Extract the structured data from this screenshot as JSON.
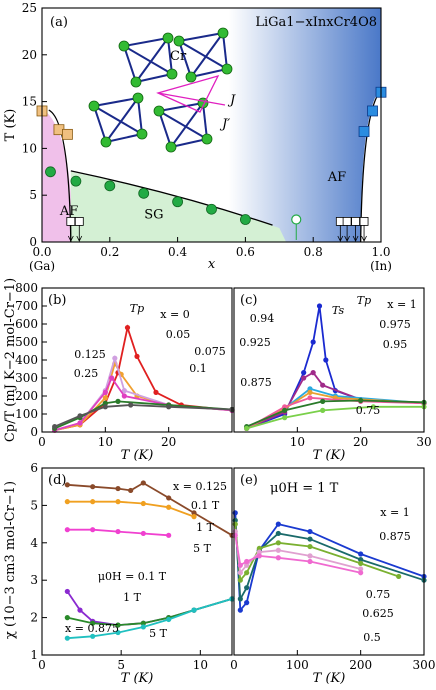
{
  "chart_data": [
    {
      "panel": "(a)",
      "type": "scatter",
      "title": "LiGa1−xInxCr4O8",
      "xlabel": "x",
      "ylabel": "T (K)",
      "xlim": [
        0,
        1
      ],
      "ylim": [
        0,
        25
      ],
      "x_ticks": [
        "0.0",
        "0.2",
        "0.4",
        "0.6",
        "0.8",
        "1.0"
      ],
      "y_ticks": [
        "0",
        "5",
        "10",
        "15",
        "20",
        "25"
      ],
      "x_end_labels": [
        "(Ga)",
        "(In)"
      ],
      "regions": [
        "AF",
        "SG",
        "AF"
      ],
      "structure_labels": [
        "Cr",
        "J",
        "J′"
      ],
      "colors": {
        "af_left": "#f0c0ea",
        "sg": "#d4f0d4",
        "af_right_top": "#4a78c8",
        "sg_points": "#22aa44",
        "ga_points": "#f0c080",
        "in_points": "#2a8ce0"
      },
      "series": [
        {
          "name": "SG",
          "x": [
            0.025,
            0.1,
            0.2,
            0.3,
            0.4,
            0.5,
            0.6
          ],
          "y": [
            7.5,
            6.5,
            6.0,
            5.2,
            4.3,
            3.5,
            2.4
          ]
        },
        {
          "name": "AF (Ga)",
          "x": [
            0.0,
            0.05,
            0.075
          ],
          "y": [
            14.0,
            12.0,
            11.5
          ]
        },
        {
          "name": "AF (In)",
          "x": [
            0.95,
            0.975,
            1.0
          ],
          "y": [
            11.8,
            14.0,
            16.0
          ]
        }
      ]
    },
    {
      "panel": "(b)",
      "type": "line",
      "xlabel": "T (K)",
      "ylabel": "Cp/T (mJ K−2 mol-Cr−1)",
      "xlim": [
        0,
        30
      ],
      "ylim": [
        0,
        800
      ],
      "x_ticks": [
        "0",
        "10",
        "20"
      ],
      "y_ticks": [
        "0",
        "100",
        "200",
        "300",
        "400",
        "500",
        "600",
        "700",
        "800"
      ],
      "peak_label": "Tp",
      "series": [
        {
          "name": "x = 0",
          "color": "#e02020",
          "x": [
            2,
            6,
            10,
            12,
            13.5,
            15,
            18,
            22,
            30
          ],
          "y": [
            10,
            40,
            160,
            330,
            580,
            420,
            220,
            150,
            120
          ]
        },
        {
          "name": "0.05",
          "color": "#f0a030",
          "x": [
            2,
            6,
            10,
            11.5,
            12.5,
            15,
            20,
            30
          ],
          "y": [
            10,
            40,
            190,
            380,
            320,
            200,
            150,
            120
          ]
        },
        {
          "name": "0.075",
          "color": "#d0a0e0",
          "x": [
            2,
            6,
            10,
            11.5,
            13,
            20,
            30
          ],
          "y": [
            10,
            50,
            230,
            410,
            230,
            150,
            120
          ]
        },
        {
          "name": "0.1",
          "color": "#e040c0",
          "x": [
            2,
            6,
            10,
            11,
            13,
            20,
            30
          ],
          "y": [
            10,
            50,
            220,
            300,
            200,
            150,
            120
          ]
        },
        {
          "name": "0.125",
          "color": "#2a7a2a",
          "x": [
            2,
            6,
            10,
            12,
            20,
            30
          ],
          "y": [
            20,
            80,
            160,
            170,
            150,
            125
          ]
        },
        {
          "name": "0.25",
          "color": "#555555",
          "x": [
            2,
            6,
            10,
            14,
            20,
            30
          ],
          "y": [
            30,
            90,
            140,
            150,
            140,
            125
          ]
        }
      ]
    },
    {
      "panel": "(c)",
      "type": "line",
      "xlabel": "T (K)",
      "xlim": [
        0,
        30
      ],
      "ylim": [
        0,
        800
      ],
      "x_ticks": [
        "10",
        "20",
        "30"
      ],
      "peak_labels": [
        "Ts",
        "Tp"
      ],
      "series": [
        {
          "name": "x = 1",
          "color": "#1a2ad0",
          "x": [
            2,
            8,
            11,
            12.5,
            13.5,
            14.5,
            16,
            20,
            30
          ],
          "y": [
            20,
            100,
            330,
            500,
            700,
            400,
            230,
            180,
            160
          ]
        },
        {
          "name": "0.975",
          "color": "#a02a8a",
          "x": [
            2,
            8,
            11,
            12.5,
            14,
            20,
            30
          ],
          "y": [
            20,
            110,
            300,
            330,
            260,
            180,
            160
          ]
        },
        {
          "name": "0.95",
          "color": "#2aaae0",
          "x": [
            2,
            8,
            12,
            16,
            30
          ],
          "y": [
            20,
            130,
            240,
            200,
            160
          ]
        },
        {
          "name": "0.94",
          "color": "#e8a030",
          "x": [
            2,
            8,
            12,
            16,
            30
          ],
          "y": [
            20,
            130,
            220,
            190,
            160
          ]
        },
        {
          "name": "0.925",
          "color": "#f05a9a",
          "x": [
            2,
            8,
            12,
            20,
            30
          ],
          "y": [
            20,
            140,
            190,
            170,
            160
          ]
        },
        {
          "name": "0.875",
          "color": "#2a7a2a",
          "x": [
            2,
            8,
            14,
            20,
            30
          ],
          "y": [
            30,
            120,
            170,
            175,
            165
          ]
        },
        {
          "name": "0.75",
          "color": "#7ad04a",
          "x": [
            2,
            8,
            14,
            22,
            30
          ],
          "y": [
            20,
            80,
            120,
            140,
            140
          ]
        }
      ]
    },
    {
      "panel": "(d)",
      "type": "line",
      "xlabel": "T (K)",
      "ylabel": "χ (10−3 cm3 mol-Cr−1)",
      "xlim": [
        0,
        15
      ],
      "ylim": [
        1,
        6
      ],
      "x_ticks": [
        "0",
        "5",
        "10"
      ],
      "y_ticks": [
        "1",
        "2",
        "3",
        "4",
        "5",
        "6"
      ],
      "labels": [
        "x = 0.125",
        "0.1 T",
        "1 T",
        "5 T",
        "μ0H = 0.1 T",
        "1 T",
        "5 T",
        "x = 0.875"
      ],
      "series": [
        {
          "name": "x = 0.125, 0.1 T",
          "color": "#8a4a2a",
          "x": [
            2,
            4,
            6,
            7,
            8,
            10,
            12,
            15
          ],
          "y": [
            5.55,
            5.5,
            5.45,
            5.4,
            5.6,
            5.2,
            4.8,
            4.2
          ]
        },
        {
          "name": "x = 0.125, 1 T",
          "color": "#f0a020",
          "x": [
            2,
            4,
            6,
            8,
            10,
            12
          ],
          "y": [
            5.1,
            5.1,
            5.1,
            5.05,
            4.95,
            4.7
          ]
        },
        {
          "name": "x = 0.125, 5 T",
          "color": "#f040d0",
          "x": [
            2,
            4,
            6,
            8,
            10
          ],
          "y": [
            4.35,
            4.35,
            4.3,
            4.25,
            4.2
          ]
        },
        {
          "name": "x = 0.875, 0.1 T",
          "color": "#8a2ad0",
          "x": [
            2,
            3,
            4,
            6,
            8,
            10,
            12,
            15
          ],
          "y": [
            2.7,
            2.2,
            1.9,
            1.8,
            1.85,
            2.0,
            2.2,
            2.5
          ]
        },
        {
          "name": "x = 0.875, 1 T",
          "color": "#2a8a2a",
          "x": [
            2,
            4,
            6,
            8,
            10,
            12,
            15
          ],
          "y": [
            2.0,
            1.85,
            1.8,
            1.85,
            2.0,
            2.2,
            2.5
          ]
        },
        {
          "name": "x = 0.875, 5 T",
          "color": "#20c0c0",
          "x": [
            2,
            4,
            6,
            8,
            10,
            12,
            15
          ],
          "y": [
            1.45,
            1.5,
            1.6,
            1.75,
            1.95,
            2.2,
            2.5
          ]
        }
      ]
    },
    {
      "panel": "(e)",
      "type": "line",
      "title": "μ0H = 1 T",
      "xlabel": "T (K)",
      "xlim": [
        0,
        300
      ],
      "ylim": [
        1,
        6
      ],
      "x_ticks": [
        "0",
        "100",
        "200",
        "300"
      ],
      "series": [
        {
          "name": "x = 1",
          "color": "#1a3ad0",
          "x": [
            2,
            10,
            20,
            40,
            70,
            120,
            200,
            300
          ],
          "y": [
            4.8,
            2.2,
            2.4,
            3.8,
            4.5,
            4.3,
            3.7,
            3.1
          ]
        },
        {
          "name": "0.875",
          "color": "#1a6a6a",
          "x": [
            2,
            10,
            20,
            40,
            70,
            120,
            200,
            300
          ],
          "y": [
            4.6,
            2.5,
            2.8,
            3.8,
            4.25,
            4.1,
            3.55,
            3.0
          ]
        },
        {
          "name": "0.75",
          "color": "#7ab030",
          "x": [
            2,
            10,
            20,
            40,
            70,
            120,
            200,
            260
          ],
          "y": [
            4.5,
            3.0,
            3.2,
            3.85,
            4.0,
            3.9,
            3.45,
            3.1
          ]
        },
        {
          "name": "0.625",
          "color": "#e0a0d0",
          "x": [
            2,
            10,
            20,
            40,
            70,
            120,
            200
          ],
          "y": [
            4.3,
            3.2,
            3.4,
            3.75,
            3.8,
            3.65,
            3.3
          ]
        },
        {
          "name": "0.5",
          "color": "#f06ad0",
          "x": [
            2,
            10,
            20,
            40,
            70,
            120,
            200
          ],
          "y": [
            4.2,
            3.4,
            3.5,
            3.65,
            3.6,
            3.5,
            3.2
          ]
        }
      ]
    }
  ]
}
